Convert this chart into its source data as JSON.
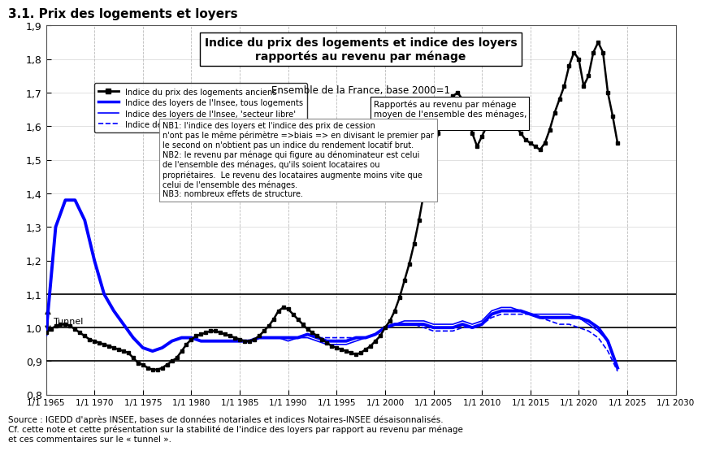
{
  "title_main": "Indice du prix des logements et indice des loyers\nrapportés au revenu par ménage",
  "title_sub": "Ensemble de la France, base 2000=1",
  "section_title": "3.1. Prix des logements et loyers",
  "xlabel": "",
  "ylabel": "",
  "ylim": [
    0.8,
    1.9
  ],
  "yticks": [
    0.8,
    0.9,
    1.0,
    1.1,
    1.2,
    1.3,
    1.4,
    1.5,
    1.6,
    1.7,
    1.8,
    1.9
  ],
  "xlim_start": 1965.0,
  "xlim_end": 2030.0,
  "xticks": [
    1965,
    1970,
    1975,
    1980,
    1985,
    1990,
    1995,
    2000,
    2005,
    2010,
    2015,
    2020,
    2025,
    2030
  ],
  "xticklabels": [
    "1/1 1965",
    "1/1 1970",
    "1/1 1975",
    "1/1 1980",
    "1/1 1985",
    "1/1 1990",
    "1/1 1995",
    "1/1 2000",
    "1/1 2005",
    "1/1 2010",
    "1/1 2015",
    "1/1 2020",
    "1/1 2025",
    "1/1 2030"
  ],
  "background_color": "#ffffff",
  "grid_color": "#aaaaaa",
  "hline_color": "#000000",
  "hlines": [
    0.9,
    1.0,
    1.1
  ],
  "tunnel_annotation": "Tunnel",
  "source_text": "Source : IGEDD d'après INSEE, bases de données notariales et indices Notaires-INSEE désaisonnalisés.\nCf. cette note et cette présentation sur la stabilité de l'indice des loyers par rapport au revenu par ménage\net ces commentaires sur le « tunnel ».",
  "legend_entries": [
    {
      "label": "Indice du prix des logements anciens",
      "color": "#000000",
      "lw": 2.0,
      "ls": "-",
      "marker": "s",
      "ms": 4
    },
    {
      "label": "Indice des loyers de l'Insee, tous logements",
      "color": "#0000ff",
      "lw": 2.5,
      "ls": "-",
      "marker": null,
      "ms": 0
    },
    {
      "label": "Indice des loyers de l'Insee, 'secteur libre'",
      "color": "#0000ff",
      "lw": 1.2,
      "ls": "-",
      "marker": null,
      "ms": 0
    },
    {
      "label": "Indice des loyers de l'Insee, 'secteur social'",
      "color": "#0000ff",
      "lw": 1.2,
      "ls": "--",
      "marker": null,
      "ms": 0
    }
  ],
  "prices_x": [
    1965.0,
    1965.5,
    1966.0,
    1966.5,
    1967.0,
    1967.5,
    1968.0,
    1968.5,
    1969.0,
    1969.5,
    1970.0,
    1970.5,
    1971.0,
    1971.5,
    1972.0,
    1972.5,
    1973.0,
    1973.5,
    1974.0,
    1974.5,
    1975.0,
    1975.5,
    1976.0,
    1976.5,
    1977.0,
    1977.5,
    1978.0,
    1978.5,
    1979.0,
    1979.5,
    1980.0,
    1980.5,
    1981.0,
    1981.5,
    1982.0,
    1982.5,
    1983.0,
    1983.5,
    1984.0,
    1984.5,
    1985.0,
    1985.5,
    1986.0,
    1986.5,
    1987.0,
    1987.5,
    1988.0,
    1988.5,
    1989.0,
    1989.5,
    1990.0,
    1990.5,
    1991.0,
    1991.5,
    1992.0,
    1992.5,
    1993.0,
    1993.5,
    1994.0,
    1994.5,
    1995.0,
    1995.5,
    1996.0,
    1996.5,
    1997.0,
    1997.5,
    1998.0,
    1998.5,
    1999.0,
    1999.5,
    2000.0,
    2000.5,
    2001.0,
    2001.5,
    2002.0,
    2002.5,
    2003.0,
    2003.5,
    2004.0,
    2004.5,
    2005.0,
    2005.5,
    2006.0,
    2006.5,
    2007.0,
    2007.5,
    2008.0,
    2008.5,
    2009.0,
    2009.5,
    2010.0,
    2010.5,
    2011.0,
    2011.5,
    2012.0,
    2012.5,
    2013.0,
    2013.5,
    2014.0,
    2014.5,
    2015.0,
    2015.5,
    2016.0,
    2016.5,
    2017.0,
    2017.5,
    2018.0,
    2018.5,
    2019.0,
    2019.5,
    2020.0,
    2020.5,
    2021.0,
    2021.5,
    2022.0,
    2022.5,
    2023.0,
    2023.5,
    2024.0
  ],
  "prices_y": [
    0.985,
    0.995,
    1.005,
    1.01,
    1.01,
    1.005,
    0.995,
    0.985,
    0.975,
    0.965,
    0.96,
    0.955,
    0.95,
    0.945,
    0.94,
    0.935,
    0.93,
    0.925,
    0.91,
    0.895,
    0.89,
    0.88,
    0.875,
    0.875,
    0.88,
    0.89,
    0.9,
    0.91,
    0.93,
    0.95,
    0.965,
    0.975,
    0.98,
    0.985,
    0.99,
    0.99,
    0.985,
    0.98,
    0.975,
    0.97,
    0.965,
    0.96,
    0.96,
    0.965,
    0.975,
    0.99,
    1.005,
    1.025,
    1.05,
    1.06,
    1.055,
    1.04,
    1.025,
    1.01,
    0.995,
    0.985,
    0.975,
    0.965,
    0.955,
    0.945,
    0.94,
    0.935,
    0.93,
    0.925,
    0.92,
    0.925,
    0.935,
    0.945,
    0.96,
    0.975,
    1.0,
    1.02,
    1.05,
    1.09,
    1.14,
    1.19,
    1.25,
    1.32,
    1.4,
    1.47,
    1.53,
    1.58,
    1.63,
    1.67,
    1.69,
    1.7,
    1.68,
    1.64,
    1.58,
    1.54,
    1.57,
    1.6,
    1.65,
    1.67,
    1.67,
    1.65,
    1.62,
    1.6,
    1.58,
    1.56,
    1.55,
    1.54,
    1.53,
    1.55,
    1.59,
    1.64,
    1.68,
    1.72,
    1.78,
    1.82,
    1.8,
    1.72,
    1.75,
    1.82,
    1.85,
    1.82,
    1.7,
    1.63,
    1.55
  ],
  "loyers_all_x": [
    1965.0,
    1966.0,
    1967.0,
    1968.0,
    1969.0,
    1970.0,
    1971.0,
    1972.0,
    1973.0,
    1974.0,
    1975.0,
    1976.0,
    1977.0,
    1978.0,
    1979.0,
    1980.0,
    1981.0,
    1982.0,
    1983.0,
    1984.0,
    1985.0,
    1986.0,
    1987.0,
    1988.0,
    1989.0,
    1990.0,
    1991.0,
    1992.0,
    1993.0,
    1994.0,
    1995.0,
    1996.0,
    1997.0,
    1998.0,
    1999.0,
    2000.0,
    2001.0,
    2002.0,
    2003.0,
    2004.0,
    2005.0,
    2006.0,
    2007.0,
    2008.0,
    2009.0,
    2010.0,
    2011.0,
    2012.0,
    2013.0,
    2014.0,
    2015.0,
    2016.0,
    2017.0,
    2018.0,
    2019.0,
    2020.0,
    2021.0,
    2022.0,
    2023.0,
    2024.0
  ],
  "loyers_all_y": [
    0.98,
    1.3,
    1.38,
    1.38,
    1.32,
    1.2,
    1.1,
    1.05,
    1.01,
    0.97,
    0.94,
    0.93,
    0.94,
    0.96,
    0.97,
    0.97,
    0.96,
    0.96,
    0.96,
    0.96,
    0.96,
    0.96,
    0.97,
    0.97,
    0.97,
    0.97,
    0.97,
    0.98,
    0.97,
    0.96,
    0.96,
    0.96,
    0.97,
    0.97,
    0.98,
    1.0,
    1.01,
    1.01,
    1.01,
    1.01,
    1.0,
    1.0,
    1.0,
    1.01,
    1.0,
    1.01,
    1.04,
    1.05,
    1.05,
    1.05,
    1.04,
    1.03,
    1.03,
    1.03,
    1.03,
    1.03,
    1.02,
    1.0,
    0.96,
    0.88
  ],
  "loyers_libre_x": [
    1988.0,
    1989.0,
    1990.0,
    1991.0,
    1992.0,
    1993.0,
    1994.0,
    1995.0,
    1996.0,
    1997.0,
    1998.0,
    1999.0,
    2000.0,
    2001.0,
    2002.0,
    2003.0,
    2004.0,
    2005.0,
    2006.0,
    2007.0,
    2008.0,
    2009.0,
    2010.0,
    2011.0,
    2012.0,
    2013.0,
    2014.0,
    2015.0,
    2016.0,
    2017.0,
    2018.0,
    2019.0,
    2020.0,
    2021.0,
    2022.0,
    2023.0,
    2024.0
  ],
  "loyers_libre_y": [
    0.97,
    0.97,
    0.96,
    0.97,
    0.97,
    0.96,
    0.95,
    0.95,
    0.95,
    0.96,
    0.97,
    0.98,
    1.0,
    1.01,
    1.02,
    1.02,
    1.02,
    1.01,
    1.01,
    1.01,
    1.02,
    1.01,
    1.02,
    1.05,
    1.06,
    1.06,
    1.05,
    1.04,
    1.04,
    1.04,
    1.04,
    1.04,
    1.03,
    1.01,
    0.99,
    0.96,
    0.88
  ],
  "loyers_social_x": [
    1988.0,
    1989.0,
    1990.0,
    1991.0,
    1992.0,
    1993.0,
    1994.0,
    1995.0,
    1996.0,
    1997.0,
    1998.0,
    1999.0,
    2000.0,
    2001.0,
    2002.0,
    2003.0,
    2004.0,
    2005.0,
    2006.0,
    2007.0,
    2008.0,
    2009.0,
    2010.0,
    2011.0,
    2012.0,
    2013.0,
    2014.0,
    2015.0,
    2016.0,
    2017.0,
    2018.0,
    2019.0,
    2020.0,
    2021.0,
    2022.0,
    2023.0,
    2024.0
  ],
  "loyers_social_y": [
    0.97,
    0.97,
    0.97,
    0.97,
    0.98,
    0.97,
    0.97,
    0.97,
    0.97,
    0.97,
    0.97,
    0.98,
    1.0,
    1.01,
    1.01,
    1.01,
    1.0,
    0.99,
    0.99,
    0.99,
    1.0,
    1.0,
    1.01,
    1.03,
    1.04,
    1.04,
    1.04,
    1.04,
    1.03,
    1.02,
    1.01,
    1.01,
    1.0,
    0.99,
    0.97,
    0.93,
    0.87
  ]
}
